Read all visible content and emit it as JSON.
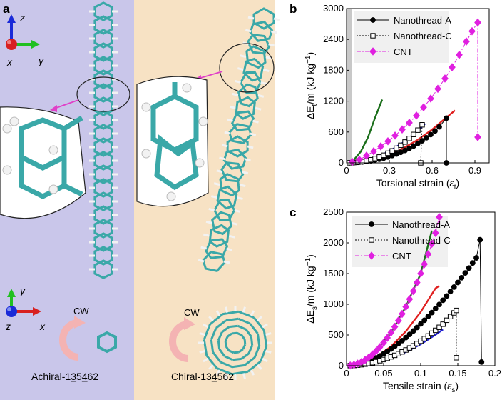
{
  "panel_a": {
    "letter": "a",
    "left_caption_prefix": "Achiral-1",
    "left_caption_u1": "3",
    "left_caption_mid": "5",
    "left_caption_u2": "4",
    "left_caption_suffix": "62",
    "right_caption_prefix": "Chiral-1",
    "right_caption_u1": "3",
    "right_caption_mid": "4",
    "right_caption_u2": "5",
    "right_caption_suffix": "62",
    "cw_left": "CW",
    "cw_right": "CW",
    "axes_top": {
      "z": "z",
      "y": "y",
      "x": "x"
    },
    "axes_bottom": {
      "y": "y",
      "z": "z",
      "x": "x"
    },
    "colors": {
      "left_bg": "#c9c6ea",
      "right_bg": "#f7e2c4",
      "carbon": "#3aa8a8",
      "hydrogen": "#f2f2f2",
      "arrow": "#e040c8",
      "cw_arrow": "#f4b3b3"
    }
  },
  "chart_data": [
    {
      "id": "b",
      "type": "line",
      "letter": "b",
      "xlabel_prefix": "Torsional strain (",
      "xlabel_sym": "ε",
      "xlabel_sub": "t",
      "xlabel_suffix": ")",
      "ylabel_prefix": "ΔE",
      "ylabel_sub": "t",
      "ylabel_suffix": "/m (kJ kg",
      "ylabel_sup": "−1",
      "ylabel_end": ")",
      "xlim": [
        0,
        1.0
      ],
      "ylim": [
        0,
        3000
      ],
      "xticks": [
        0,
        0.3,
        0.6,
        0.9
      ],
      "xtick_labels": [
        "0",
        "0.3",
        "0.6",
        "0.9"
      ],
      "yticks": [
        0,
        600,
        1200,
        1800,
        2400,
        3000
      ],
      "ytick_labels": [
        "0",
        "600",
        "1200",
        "1800",
        "2400",
        "3000"
      ],
      "legend": [
        "Nanothread-A",
        "Nanothread-C",
        "CNT"
      ],
      "shade": [
        0,
        0.04
      ],
      "series": [
        {
          "name": "Nanothread-A",
          "color": "#000000",
          "marker": "circle",
          "x": [
            0.02,
            0.05,
            0.08,
            0.11,
            0.14,
            0.17,
            0.2,
            0.23,
            0.26,
            0.29,
            0.32,
            0.35,
            0.38,
            0.41,
            0.44,
            0.47,
            0.5,
            0.53,
            0.56,
            0.59,
            0.62,
            0.65,
            0.7
          ],
          "y": [
            1,
            4,
            10,
            18,
            28,
            40,
            55,
            72,
            92,
            115,
            142,
            172,
            205,
            242,
            283,
            328,
            378,
            430,
            488,
            550,
            620,
            700,
            870
          ],
          "drop": [
            0.7,
            0
          ]
        },
        {
          "name": "Nanothread-C",
          "color": "#000000",
          "marker": "square",
          "x": [
            0.02,
            0.05,
            0.08,
            0.11,
            0.14,
            0.17,
            0.2,
            0.23,
            0.26,
            0.29,
            0.32,
            0.35,
            0.38,
            0.41,
            0.44,
            0.47,
            0.5,
            0.53
          ],
          "y": [
            1,
            5,
            13,
            24,
            40,
            60,
            85,
            114,
            148,
            188,
            233,
            285,
            342,
            405,
            475,
            552,
            636,
            740
          ],
          "drop": [
            0.52,
            0
          ]
        },
        {
          "name": "CNT",
          "color": "#e020e0",
          "marker": "diamond",
          "x": [
            0.04,
            0.09,
            0.14,
            0.19,
            0.24,
            0.29,
            0.34,
            0.39,
            0.44,
            0.49,
            0.54,
            0.59,
            0.64,
            0.69,
            0.74,
            0.79,
            0.84,
            0.88,
            0.92
          ],
          "y": [
            20,
            60,
            140,
            225,
            320,
            420,
            530,
            650,
            780,
            920,
            1080,
            1250,
            1440,
            1640,
            1860,
            2100,
            2360,
            2560,
            2730
          ],
          "drop": [
            0.92,
            500
          ]
        }
      ],
      "fits": [
        {
          "color": "#1a6e1a",
          "x": [
            0,
            0.05,
            0.1,
            0.15,
            0.2,
            0.25
          ],
          "y": [
            0,
            55,
            220,
            495,
            880,
            1230
          ]
        },
        {
          "color": "#e02020",
          "x": [
            0,
            0.1,
            0.2,
            0.3,
            0.4,
            0.5,
            0.6,
            0.7,
            0.76
          ],
          "y": [
            0,
            18,
            72,
            162,
            288,
            450,
            648,
            882,
            1020
          ]
        },
        {
          "color": "#2020d0",
          "x": [
            0,
            0.1,
            0.2,
            0.3,
            0.4,
            0.5,
            0.55
          ],
          "y": [
            0,
            25,
            100,
            225,
            400,
            625,
            760
          ]
        }
      ]
    },
    {
      "id": "c",
      "type": "line",
      "letter": "c",
      "xlabel_prefix": "Tensile strain (",
      "xlabel_sym": "ε",
      "xlabel_sub": "s",
      "xlabel_suffix": ")",
      "ylabel_prefix": "ΔE",
      "ylabel_sub": "s",
      "ylabel_suffix": "/m (kJ kg",
      "ylabel_sup": "−1",
      "ylabel_end": ")",
      "xlim": [
        0,
        0.2
      ],
      "ylim": [
        0,
        2500
      ],
      "xticks": [
        0,
        0.05,
        0.1,
        0.15,
        0.2
      ],
      "xtick_labels": [
        "0",
        "0.05",
        "0.1",
        "0.15",
        "0.2"
      ],
      "yticks": [
        0,
        500,
        1000,
        1500,
        2000,
        2500
      ],
      "ytick_labels": [
        "0",
        "500",
        "1000",
        "1500",
        "2000",
        "2500"
      ],
      "legend": [
        "Nanothread-A",
        "Nanothread-C",
        "CNT"
      ],
      "series": [
        {
          "name": "Nanothread-A",
          "color": "#000000",
          "marker": "circle",
          "x": [
            0.005,
            0.01,
            0.015,
            0.02,
            0.025,
            0.03,
            0.035,
            0.04,
            0.045,
            0.05,
            0.055,
            0.06,
            0.065,
            0.07,
            0.075,
            0.08,
            0.085,
            0.09,
            0.095,
            0.1,
            0.105,
            0.11,
            0.115,
            0.12,
            0.125,
            0.13,
            0.135,
            0.14,
            0.145,
            0.15,
            0.155,
            0.16,
            0.165,
            0.17,
            0.175,
            0.18
          ],
          "y": [
            2,
            8,
            18,
            32,
            50,
            72,
            98,
            128,
            160,
            195,
            232,
            272,
            315,
            360,
            408,
            458,
            510,
            565,
            622,
            680,
            740,
            802,
            865,
            930,
            997,
            1065,
            1135,
            1207,
            1280,
            1355,
            1432,
            1510,
            1590,
            1672,
            1755,
            2050
          ],
          "drop": [
            0.182,
            60
          ]
        },
        {
          "name": "Nanothread-C",
          "color": "#000000",
          "marker": "square",
          "x": [
            0.005,
            0.01,
            0.015,
            0.02,
            0.025,
            0.03,
            0.035,
            0.04,
            0.045,
            0.05,
            0.055,
            0.06,
            0.065,
            0.07,
            0.075,
            0.08,
            0.085,
            0.09,
            0.095,
            0.1,
            0.105,
            0.11,
            0.115,
            0.12,
            0.125,
            0.13,
            0.135,
            0.14,
            0.145,
            0.148
          ],
          "y": [
            1,
            4,
            9,
            16,
            25,
            36,
            49,
            64,
            81,
            100,
            121,
            144,
            169,
            196,
            225,
            256,
            289,
            324,
            361,
            400,
            441,
            484,
            529,
            576,
            625,
            676,
            740,
            800,
            860,
            900
          ],
          "drop": [
            0.148,
            130
          ]
        },
        {
          "name": "CNT",
          "color": "#e020e0",
          "marker": "diamond",
          "x": [
            0.005,
            0.01,
            0.015,
            0.02,
            0.025,
            0.03,
            0.035,
            0.04,
            0.045,
            0.05,
            0.055,
            0.06,
            0.065,
            0.07,
            0.075,
            0.08,
            0.085,
            0.09,
            0.095,
            0.1,
            0.105,
            0.11,
            0.115,
            0.12,
            0.125
          ],
          "y": [
            4,
            15,
            34,
            60,
            94,
            135,
            184,
            240,
            304,
            375,
            454,
            540,
            634,
            735,
            844,
            960,
            1084,
            1215,
            1354,
            1500,
            1654,
            1815,
            1984,
            2160,
            2420
          ]
        }
      ],
      "fits": [
        {
          "color": "#1a6e1a",
          "x": [
            0,
            0.02,
            0.04,
            0.06,
            0.08,
            0.1,
            0.115
          ],
          "y": [
            0,
            60,
            240,
            540,
            960,
            1500,
            2200
          ]
        },
        {
          "color": "#e02020",
          "x": [
            0,
            0.02,
            0.04,
            0.06,
            0.08,
            0.1,
            0.12,
            0.125
          ],
          "y": [
            0,
            35,
            140,
            315,
            560,
            875,
            1260,
            1300
          ]
        },
        {
          "color": "#2020d0",
          "x": [
            0,
            0.02,
            0.04,
            0.06,
            0.08,
            0.1,
            0.12,
            0.13
          ],
          "y": [
            0,
            14,
            56,
            126,
            224,
            350,
            504,
            590
          ]
        }
      ]
    }
  ]
}
